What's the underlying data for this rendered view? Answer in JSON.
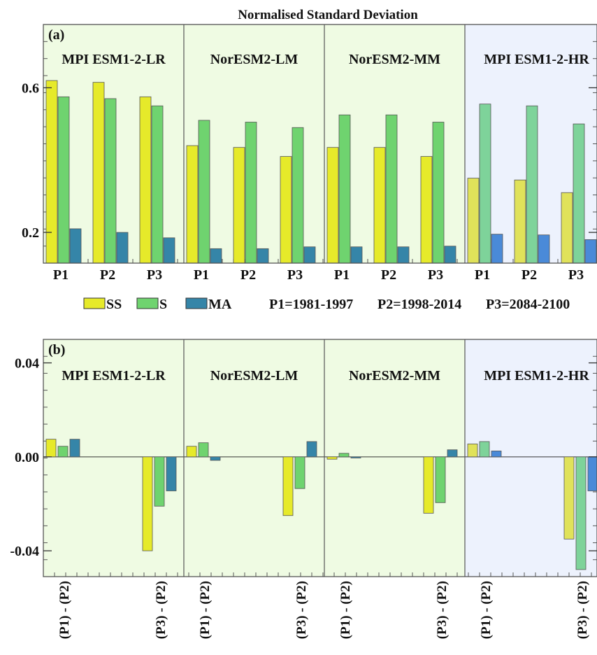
{
  "figure": {
    "title": "Normalised Standard Deviation",
    "legend": [
      {
        "key": "SS",
        "label": "SS"
      },
      {
        "key": "S",
        "label": "S"
      },
      {
        "key": "MA",
        "label": "MA"
      }
    ],
    "periods_note": [
      "P1=1981-1997",
      "P2=1998-2014",
      "P3=2084-2100"
    ]
  },
  "colors": {
    "ss_fill": "#e6ea2a",
    "s_fill": "#6fd36f",
    "ma_fill": "#3585a8",
    "ss_fill_hr": "#e0e25a",
    "s_fill_hr": "#7ed39a",
    "ma_fill_hr": "#4a8ad8",
    "panel_bg_green": "#effbe3",
    "panel_bg_blue": "#edf2fd",
    "frame": "#555555"
  },
  "chart_data": [
    {
      "type": "bar",
      "panel_label": "(a)",
      "models": [
        "MPI ESM1-2-LR",
        "NorESM2-LM",
        "NorESM2-MM",
        "MPI ESM1-2-HR"
      ],
      "categories": [
        "P1",
        "P2",
        "P3"
      ],
      "ylim": [
        0.115,
        0.775
      ],
      "yticks": [
        0.2,
        0.6
      ],
      "ytick_labels": [
        "0.2",
        "0.6"
      ],
      "series": [
        {
          "name": "SS",
          "values": [
            [
              0.62,
              0.615,
              0.575
            ],
            [
              0.44,
              0.435,
              0.41
            ],
            [
              0.435,
              0.435,
              0.41
            ],
            [
              0.35,
              0.345,
              0.31
            ]
          ]
        },
        {
          "name": "S",
          "values": [
            [
              0.575,
              0.57,
              0.55
            ],
            [
              0.51,
              0.505,
              0.49
            ],
            [
              0.525,
              0.525,
              0.505
            ],
            [
              0.555,
              0.55,
              0.5
            ]
          ]
        },
        {
          "name": "MA",
          "values": [
            [
              0.21,
              0.2,
              0.185
            ],
            [
              0.155,
              0.155,
              0.16
            ],
            [
              0.16,
              0.16,
              0.162
            ],
            [
              0.195,
              0.193,
              0.18
            ]
          ]
        }
      ]
    },
    {
      "type": "bar",
      "panel_label": "(b)",
      "models": [
        "MPI ESM1-2-LR",
        "NorESM2-LM",
        "NorESM2-MM",
        "MPI ESM1-2-HR"
      ],
      "categories": [
        "(P1) - (P2)",
        "(P3) - (P2)"
      ],
      "ylim": [
        -0.051,
        0.05
      ],
      "yticks": [
        -0.04,
        0.0,
        0.04
      ],
      "ytick_labels": [
        "-0.04",
        "0.00",
        "0.04"
      ],
      "series": [
        {
          "name": "SS",
          "values": [
            [
              0.0075,
              -0.04
            ],
            [
              0.0045,
              -0.025
            ],
            [
              -0.001,
              -0.024
            ],
            [
              0.0055,
              -0.035
            ]
          ]
        },
        {
          "name": "S",
          "values": [
            [
              0.0045,
              -0.021
            ],
            [
              0.006,
              -0.0135
            ],
            [
              0.0015,
              -0.0195
            ],
            [
              0.0065,
              -0.048
            ]
          ]
        },
        {
          "name": "MA",
          "values": [
            [
              0.0075,
              -0.0145
            ],
            [
              -0.0015,
              0.0065
            ],
            [
              -0.0005,
              0.003
            ],
            [
              0.0025,
              -0.0145
            ]
          ]
        }
      ]
    }
  ]
}
